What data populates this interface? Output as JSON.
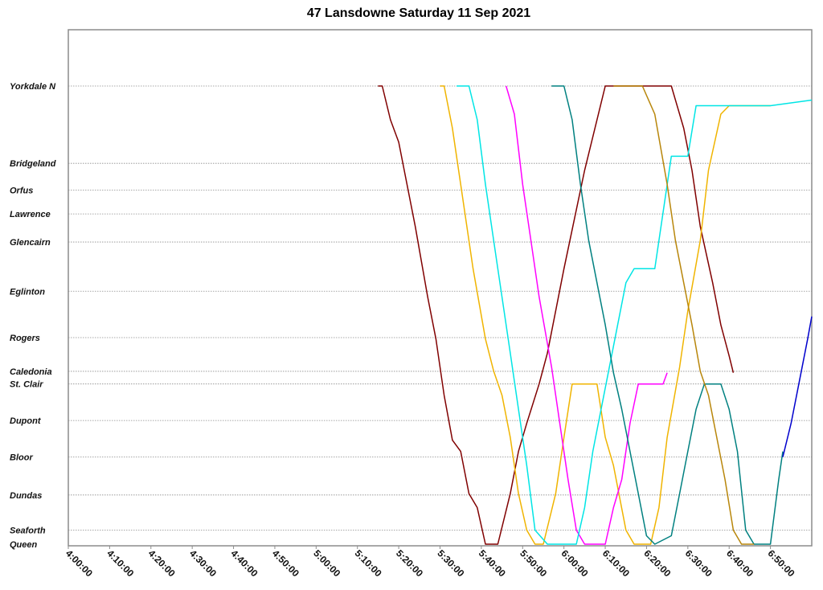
{
  "chart_data": {
    "type": "line",
    "title": "47 Lansdowne Saturday 11 Sep 2021",
    "xlabel": "",
    "ylabel": "",
    "xlim": [
      "4:00:00",
      "7:00:00"
    ],
    "x_ticks": [
      "4:00:00",
      "4:10:00",
      "4:20:00",
      "4:30:00",
      "4:40:00",
      "4:50:00",
      "5:00:00",
      "5:10:00",
      "5:20:00",
      "5:30:00",
      "5:40:00",
      "5:50:00",
      "6:00:00",
      "6:10:00",
      "6:20:00",
      "6:30:00",
      "6:40:00",
      "6:50:00"
    ],
    "stops": [
      {
        "name": "Yorkdale N",
        "pos": 0.0
      },
      {
        "name": "Bridgeland",
        "pos": 2.75
      },
      {
        "name": "Orfus",
        "pos": 3.7
      },
      {
        "name": "Lawrence",
        "pos": 4.55
      },
      {
        "name": "Glencairn",
        "pos": 5.55
      },
      {
        "name": "Eglinton",
        "pos": 7.3
      },
      {
        "name": "Rogers",
        "pos": 8.95
      },
      {
        "name": "Caledonia",
        "pos": 10.15
      },
      {
        "name": "St. Clair",
        "pos": 10.6
      },
      {
        "name": "Dupont",
        "pos": 11.9
      },
      {
        "name": "Bloor",
        "pos": 13.2
      },
      {
        "name": "Dundas",
        "pos": 14.55
      },
      {
        "name": "Seaforth",
        "pos": 15.8
      },
      {
        "name": "Queen",
        "pos": 16.3
      }
    ],
    "series": [
      {
        "color": "#800000",
        "points": [
          [
            "5:15:00",
            0
          ],
          [
            "5:16:00",
            0
          ],
          [
            "5:18:00",
            1.2
          ],
          [
            "5:20:00",
            2
          ],
          [
            "5:24:00",
            5
          ],
          [
            "5:27:00",
            7.5
          ],
          [
            "5:29:00",
            9
          ],
          [
            "5:31:00",
            11
          ],
          [
            "5:33:00",
            12.6
          ],
          [
            "5:35:00",
            13
          ],
          [
            "5:37:00",
            14.5
          ],
          [
            "5:39:00",
            15
          ],
          [
            "5:41:00",
            16.3
          ],
          [
            "5:44:00",
            16.3
          ],
          [
            "5:47:00",
            14.5
          ],
          [
            "5:49:00",
            13
          ],
          [
            "5:51:00",
            12
          ],
          [
            "5:54:00",
            10.6
          ],
          [
            "5:56:00",
            9.5
          ],
          [
            "6:00:00",
            6.5
          ],
          [
            "6:05:00",
            3
          ],
          [
            "6:10:00",
            0
          ],
          [
            "6:26:00",
            0
          ],
          [
            "6:29:00",
            1.5
          ],
          [
            "6:31:00",
            3
          ],
          [
            "6:33:00",
            5
          ],
          [
            "6:36:00",
            7
          ],
          [
            "6:38:00",
            8.5
          ],
          [
            "6:40:00",
            9.6
          ],
          [
            "6:41:00",
            10.2
          ]
        ]
      },
      {
        "color": "#f0b400",
        "points": [
          [
            "5:30:00",
            0
          ],
          [
            "5:31:00",
            0
          ],
          [
            "5:33:00",
            1.5
          ],
          [
            "5:35:00",
            3.5
          ],
          [
            "5:38:00",
            6.5
          ],
          [
            "5:41:00",
            9
          ],
          [
            "5:43:00",
            10.15
          ],
          [
            "5:45:00",
            11
          ],
          [
            "5:47:00",
            12.5
          ],
          [
            "5:49:00",
            14.5
          ],
          [
            "5:51:00",
            15.8
          ],
          [
            "5:53:00",
            16.3
          ],
          [
            "5:55:00",
            16.3
          ],
          [
            "5:58:00",
            14.5
          ],
          [
            "6:00:00",
            12.5
          ],
          [
            "6:02:00",
            10.6
          ],
          [
            "6:08:00",
            10.6
          ],
          [
            "6:10:00",
            12.5
          ],
          [
            "6:12:00",
            13.5
          ],
          [
            "6:15:00",
            15.8
          ],
          [
            "6:17:00",
            16.3
          ],
          [
            "6:21:00",
            16.3
          ],
          [
            "6:23:00",
            15
          ],
          [
            "6:25:00",
            12.5
          ],
          [
            "6:28:00",
            10
          ],
          [
            "6:30:00",
            8
          ],
          [
            "6:33:00",
            5.5
          ],
          [
            "6:35:00",
            3
          ],
          [
            "6:38:00",
            1
          ],
          [
            "6:40:00",
            0.7
          ],
          [
            "6:50:00",
            0.7
          ]
        ]
      },
      {
        "color": "#ff00ff",
        "points": [
          [
            "5:46:00",
            0
          ],
          [
            "5:48:00",
            1
          ],
          [
            "5:50:00",
            3.5
          ],
          [
            "5:52:00",
            5.5
          ],
          [
            "5:54:00",
            7.5
          ],
          [
            "5:57:00",
            10
          ],
          [
            "5:59:00",
            12
          ],
          [
            "6:01:00",
            14
          ],
          [
            "6:03:00",
            15.8
          ],
          [
            "6:05:00",
            16.3
          ],
          [
            "6:10:00",
            16.3
          ],
          [
            "6:12:00",
            15
          ],
          [
            "6:14:00",
            14
          ],
          [
            "6:16:00",
            12
          ],
          [
            "6:18:00",
            10.6
          ],
          [
            "6:24:00",
            10.6
          ],
          [
            "6:25:00",
            10.2
          ]
        ]
      },
      {
        "color": "#00e5e5",
        "points": [
          [
            "5:34:00",
            0
          ],
          [
            "5:37:00",
            0
          ],
          [
            "5:39:00",
            1.2
          ],
          [
            "5:41:00",
            3.5
          ],
          [
            "5:44:00",
            6.5
          ],
          [
            "5:47:00",
            9.5
          ],
          [
            "5:49:00",
            11.5
          ],
          [
            "5:51:00",
            13.5
          ],
          [
            "5:53:00",
            15.8
          ],
          [
            "5:56:00",
            16.3
          ],
          [
            "6:03:00",
            16.3
          ],
          [
            "6:05:00",
            15
          ],
          [
            "6:07:00",
            13
          ],
          [
            "6:09:00",
            11.5
          ],
          [
            "6:11:00",
            10
          ],
          [
            "6:13:00",
            8.5
          ],
          [
            "6:15:00",
            7
          ],
          [
            "6:17:00",
            6.5
          ],
          [
            "6:22:00",
            6.5
          ],
          [
            "6:24:00",
            4.5
          ],
          [
            "6:26:00",
            2.5
          ],
          [
            "6:30:00",
            2.5
          ],
          [
            "6:32:00",
            0.7
          ],
          [
            "6:50:00",
            0.7
          ],
          [
            "7:00:00",
            0.5
          ]
        ]
      },
      {
        "color": "#008080",
        "points": [
          [
            "5:57:00",
            0
          ],
          [
            "6:00:00",
            0
          ],
          [
            "6:02:00",
            1.2
          ],
          [
            "6:04:00",
            3.5
          ],
          [
            "6:06:00",
            5.5
          ],
          [
            "6:08:00",
            7
          ],
          [
            "6:10:00",
            8.5
          ],
          [
            "6:12:00",
            10.2
          ],
          [
            "6:14:00",
            11.5
          ],
          [
            "6:16:00",
            13
          ],
          [
            "6:18:00",
            14.5
          ],
          [
            "6:20:00",
            16
          ],
          [
            "6:22:00",
            16.3
          ],
          [
            "6:26:00",
            16
          ],
          [
            "6:28:00",
            14.5
          ],
          [
            "6:30:00",
            13
          ],
          [
            "6:32:00",
            11.5
          ],
          [
            "6:34:00",
            10.6
          ],
          [
            "6:38:00",
            10.6
          ],
          [
            "6:40:00",
            11.5
          ],
          [
            "6:42:00",
            13
          ],
          [
            "6:44:00",
            15.8
          ],
          [
            "6:46:00",
            16.3
          ],
          [
            "6:50:00",
            16.3
          ],
          [
            "6:52:00",
            14
          ],
          [
            "6:53:00",
            13
          ]
        ]
      },
      {
        "color": "#b8860b",
        "points": [
          [
            "6:12:00",
            0
          ],
          [
            "6:19:00",
            0
          ],
          [
            "6:22:00",
            1
          ],
          [
            "6:25:00",
            3.5
          ],
          [
            "6:27:00",
            5.5
          ],
          [
            "6:29:00",
            7
          ],
          [
            "6:31:00",
            8.5
          ],
          [
            "6:33:00",
            10.15
          ],
          [
            "6:35:00",
            11
          ],
          [
            "6:37:00",
            12.5
          ],
          [
            "6:39:00",
            14
          ],
          [
            "6:41:00",
            15.8
          ],
          [
            "6:43:00",
            16.3
          ],
          [
            "6:46:00",
            16.3
          ]
        ]
      },
      {
        "color": "#0000cd",
        "points": [
          [
            "6:53:00",
            13.2
          ],
          [
            "6:55:00",
            12
          ],
          [
            "6:57:00",
            10.5
          ],
          [
            "6:59:00",
            9
          ],
          [
            "7:00:00",
            8.2
          ]
        ]
      }
    ]
  }
}
